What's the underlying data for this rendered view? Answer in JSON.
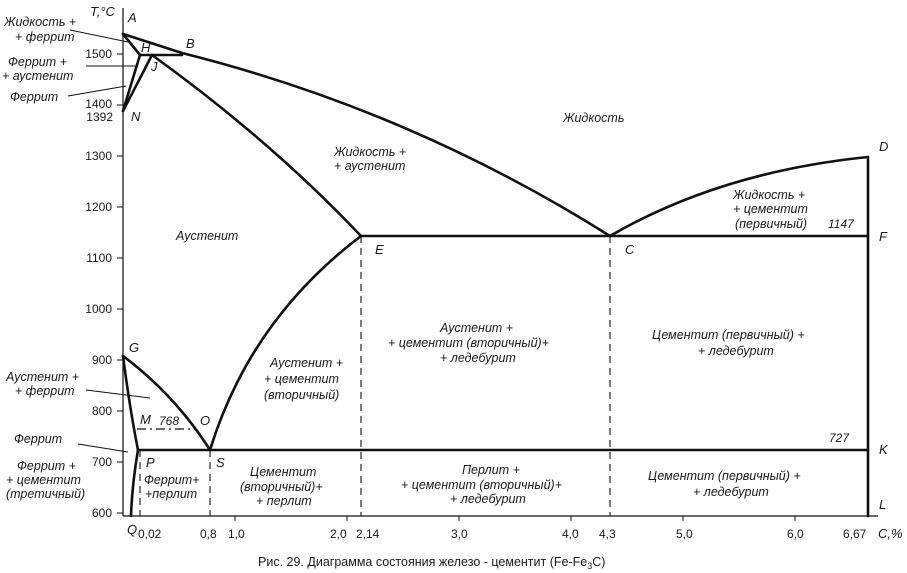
{
  "axes": {
    "y_label": "T,°C",
    "x_label": "C,%",
    "y_ticks": [
      "1500",
      "1400",
      "1392",
      "1300",
      "1200",
      "1100",
      "1000",
      "900",
      "800",
      "700",
      "600"
    ],
    "x_ticks": [
      "0,02",
      "0,8",
      "1,0",
      "2,0",
      "2,14",
      "3,0",
      "4,0",
      "4,3",
      "5,0",
      "6,0",
      "6,67"
    ]
  },
  "points": {
    "A": "A",
    "B": "B",
    "H": "H",
    "J": "J",
    "N": "N",
    "D": "D",
    "E": "E",
    "C": "C",
    "F": "F",
    "G": "G",
    "M": "M",
    "O": "O",
    "P": "P",
    "S": "S",
    "K": "K",
    "Q": "Q",
    "L": "L"
  },
  "temps": {
    "t1147": "1147",
    "t768": "768",
    "t727": "727"
  },
  "regions": {
    "liquid": "Жидкость",
    "liq_ferrite_1": "Жидкость +",
    "liq_ferrite_2": "+ феррит",
    "ferr_aust_1": "Феррит +",
    "ferr_aust_2": "+ аустенит",
    "ferrite_top": "Феррит",
    "liq_aust_1": "Жидкость +",
    "liq_aust_2": "+ аустенит",
    "liq_cem_1": "Жидкость +",
    "liq_cem_2": "+ цементит",
    "liq_cem_3": "(первичный)",
    "austenite": "Аустенит",
    "aust_cem_led_1": "Аустенит +",
    "aust_cem_led_2": "+ цементит (вторичный)+",
    "aust_cem_led_3": "+ ледебурит",
    "cem_led_top_1": "Цементит (первичный) +",
    "cem_led_top_2": "+ ледебурит",
    "aust_ferr_1": "Аустенит +",
    "aust_ferr_2": "+ феррит",
    "aust_cem2_1": "Аустенит +",
    "aust_cem2_2": "+ цементит",
    "aust_cem2_3": "(вторичный)",
    "ferrite_low": "Феррит",
    "ferr_cem3_1": "Феррит +",
    "ferr_cem3_2": "+ цементит",
    "ferr_cem3_3": "(третичный)",
    "ferr_perl_1": "Феррит+",
    "ferr_perl_2": "+перлит",
    "cem2_perl_1": "Цементит",
    "cem2_perl_2": "(вторичный)+",
    "cem2_perl_3": "+ перлит",
    "perl_cem_led_1": "Перлит +",
    "perl_cem_led_2": "+ цементит (вторичный)+",
    "perl_cem_led_3": "+ ледебурит",
    "cem_led_bot_1": "Цементит (первичный) +",
    "cem_led_bot_2": "+ ледебурит"
  },
  "caption": {
    "main": "Рис. 29. Диаграмма состояния железо - цементит (Fe-Fe",
    "sub": "3",
    "tail": "C)"
  }
}
